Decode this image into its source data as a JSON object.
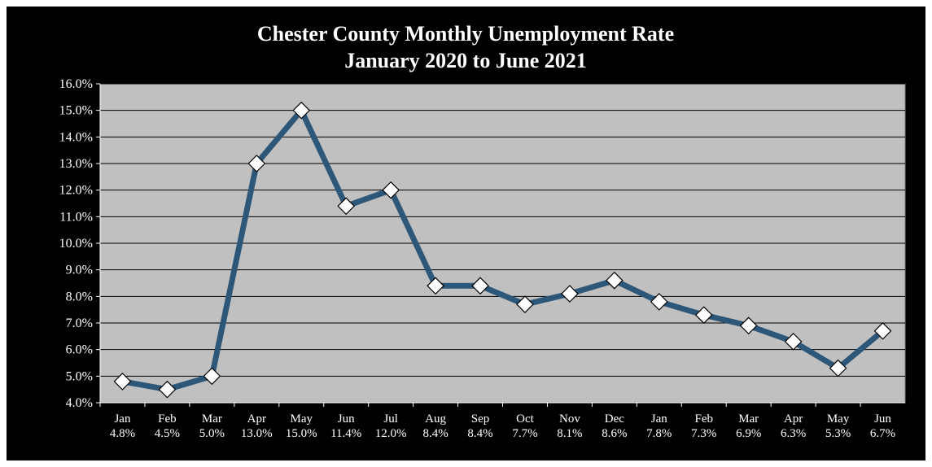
{
  "chart_data": {
    "type": "line",
    "title": "Chester County Monthly Unemployment Rate",
    "subtitle": "January 2020 to June 2021",
    "categories": [
      "Jan",
      "Feb",
      "Mar",
      "Apr",
      "May",
      "Jun",
      "Jul",
      "Aug",
      "Sep",
      "Oct",
      "Nov",
      "Dec",
      "Jan",
      "Feb",
      "Mar",
      "Apr",
      "May",
      "Jun"
    ],
    "value_labels": [
      "4.8%",
      "4.5%",
      "5.0%",
      "13.0%",
      "15.0%",
      "11.4%",
      "12.0%",
      "8.4%",
      "8.4%",
      "7.7%",
      "8.1%",
      "8.6%",
      "7.8%",
      "7.3%",
      "6.9%",
      "6.3%",
      "5.3%",
      "6.7%"
    ],
    "values": [
      4.8,
      4.5,
      5.0,
      13.0,
      15.0,
      11.4,
      12.0,
      8.4,
      8.4,
      7.7,
      8.1,
      8.6,
      7.8,
      7.3,
      6.9,
      6.3,
      5.3,
      6.7
    ],
    "ylim": [
      4.0,
      16.0
    ],
    "ytick_labels": [
      "4.0%",
      "5.0%",
      "6.0%",
      "7.0%",
      "8.0%",
      "9.0%",
      "10.0%",
      "11.0%",
      "12.0%",
      "13.0%",
      "14.0%",
      "15.0%",
      "16.0%"
    ],
    "grid": true,
    "colors": {
      "background": "#000000",
      "plot_area": "#c0c0c0",
      "line": "#2d5779",
      "marker_fill": "#ffffff",
      "marker_stroke": "#000000",
      "text": "#ffffff"
    }
  }
}
